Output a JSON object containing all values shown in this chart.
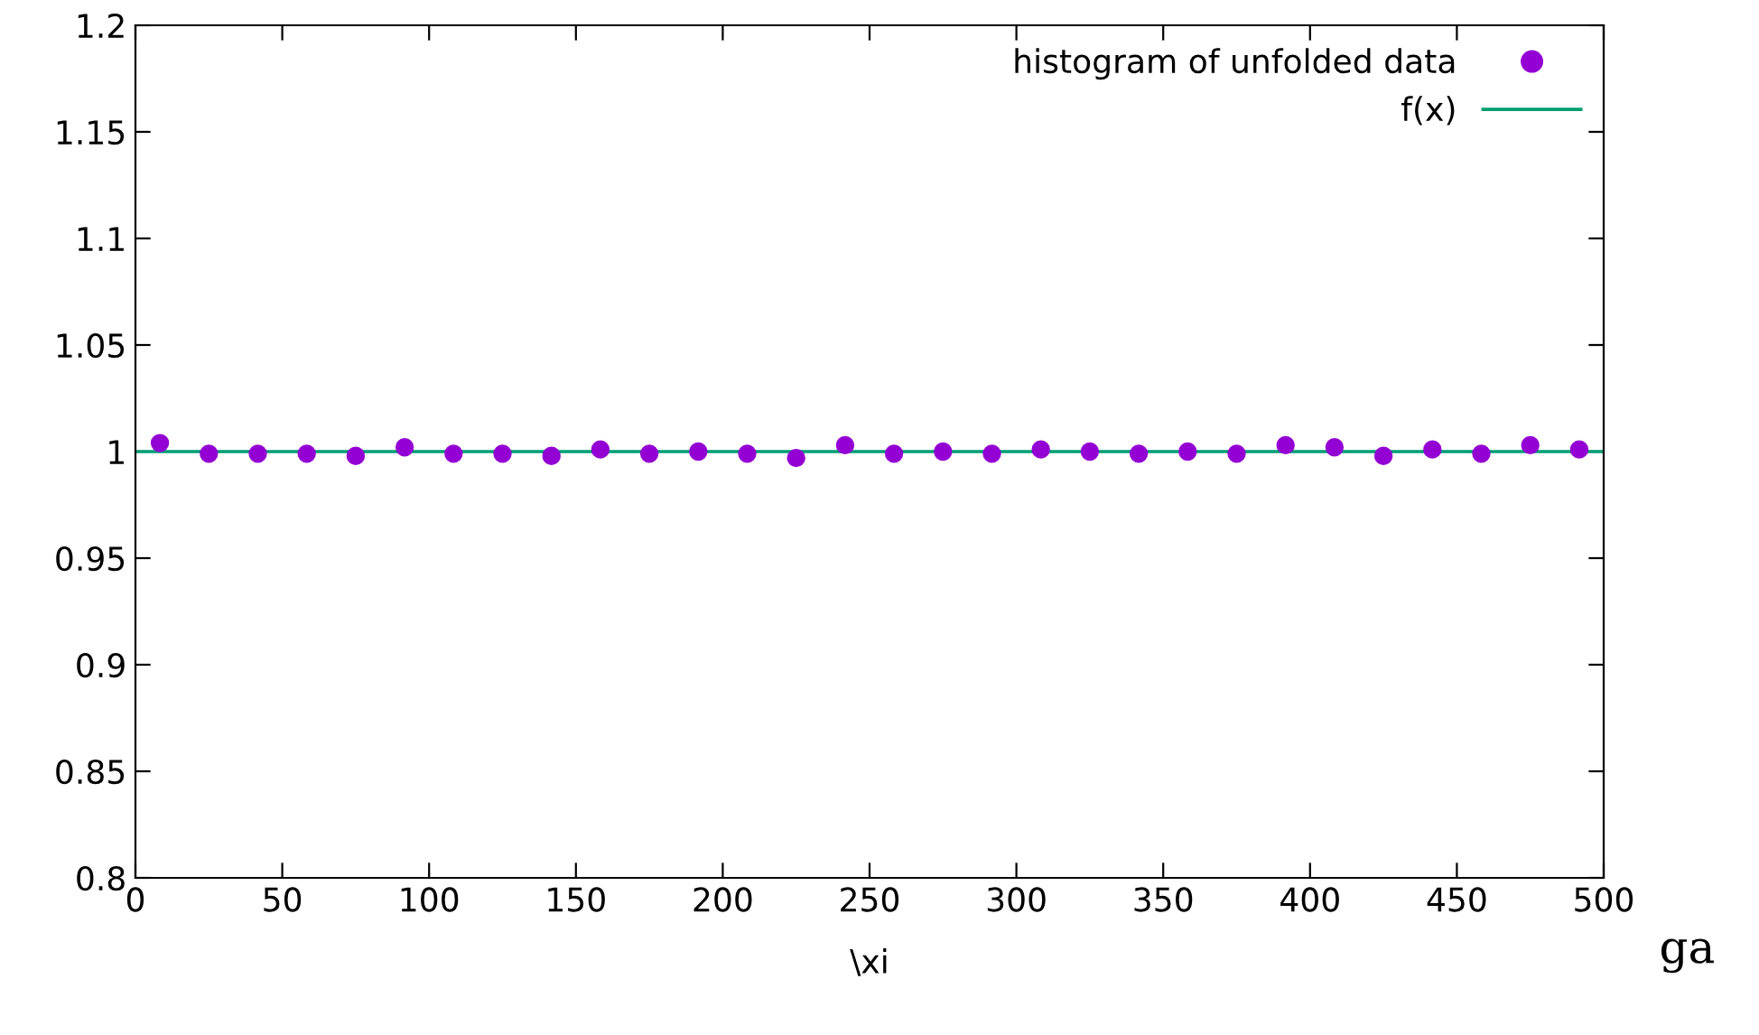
{
  "chart_data": {
    "type": "scatter",
    "xlabel": "\\xi",
    "annotations": [
      "ga"
    ],
    "xlim": [
      0,
      500
    ],
    "xticks": [
      0,
      50,
      100,
      150,
      200,
      250,
      300,
      350,
      400,
      450,
      500
    ],
    "ylim": [
      0.8,
      1.2
    ],
    "yticks": [
      0.8,
      0.85,
      0.9,
      0.95,
      1,
      1.05,
      1.1,
      1.15,
      1.2
    ],
    "grid": false,
    "legend": "top right",
    "series": [
      {
        "name": "histogram of unfolded data",
        "marker": "circle",
        "color": "#9400d3",
        "x": [
          8.33,
          25,
          41.67,
          58.33,
          75,
          91.67,
          108.33,
          125,
          141.67,
          158.33,
          175,
          191.67,
          208.33,
          225,
          241.67,
          258.33,
          275,
          291.67,
          308.33,
          325,
          341.67,
          358.33,
          375,
          391.67,
          408.33,
          425,
          441.67,
          458.33,
          475,
          491.67
        ],
        "values": [
          1.004,
          0.999,
          0.999,
          0.999,
          0.998,
          1.002,
          0.999,
          0.999,
          0.998,
          1.001,
          0.999,
          1.0,
          0.999,
          0.997,
          1.003,
          0.999,
          1.0,
          0.999,
          1.001,
          1.0,
          0.999,
          1.0,
          0.999,
          1.003,
          1.002,
          0.998,
          1.001,
          0.999,
          1.003,
          1.001
        ]
      },
      {
        "name": "f(x)",
        "type": "line",
        "marker": "none",
        "line_style": "solid",
        "color": "#009e73",
        "x": [
          0,
          500
        ],
        "values": [
          1,
          1
        ]
      }
    ]
  }
}
